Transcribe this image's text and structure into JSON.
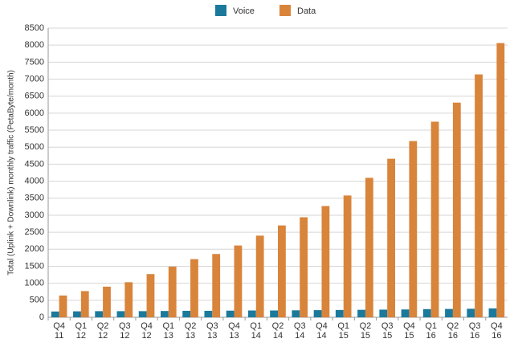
{
  "chart_data": {
    "type": "bar",
    "y_label": "Total (Uplink + Downlink) monthly traffic (PetaByte/month)",
    "categories": [
      "Q4\n11",
      "Q1\n12",
      "Q2\n12",
      "Q3\n12",
      "Q4\n12",
      "Q1\n13",
      "Q2\n13",
      "Q3\n13",
      "Q4\n13",
      "Q1\n14",
      "Q2\n14",
      "Q3\n14",
      "Q4\n14",
      "Q1\n15",
      "Q2\n15",
      "Q3\n15",
      "Q4\n15",
      "Q1\n16",
      "Q2\n16",
      "Q3\n16",
      "Q4\n16"
    ],
    "series": [
      {
        "name": "Voice",
        "color": "#1b7a9c",
        "values": [
          170,
          175,
          180,
          180,
          180,
          185,
          190,
          190,
          195,
          200,
          200,
          205,
          210,
          215,
          220,
          225,
          230,
          240,
          245,
          250,
          260
        ]
      },
      {
        "name": "Data",
        "color": "#d9843b",
        "values": [
          640,
          770,
          900,
          1030,
          1270,
          1490,
          1710,
          1860,
          2110,
          2400,
          2700,
          2940,
          3270,
          3580,
          4100,
          4660,
          5180,
          5750,
          6310,
          7140,
          8060
        ]
      }
    ],
    "ylim": [
      0,
      8500
    ],
    "yticks": [
      0,
      500,
      1000,
      1500,
      2000,
      2500,
      3000,
      3500,
      4000,
      4500,
      5000,
      5500,
      6000,
      6500,
      7000,
      7500,
      8000,
      8500
    ],
    "grid": true
  }
}
